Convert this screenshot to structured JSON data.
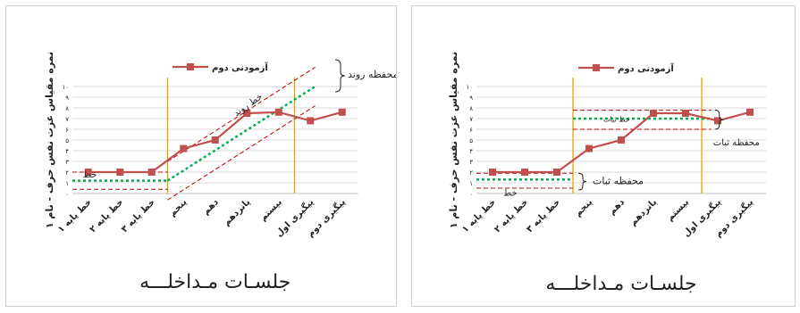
{
  "chart_data": [
    {
      "type": "line",
      "categories": [
        "خط پایه ۱",
        "خط پایه ۲",
        "خط پایه ۳",
        "پنجم",
        "دهم",
        "پانزدهم",
        "بیستم",
        "پیگیری اول",
        "پیگیری دوم"
      ],
      "series": [
        {
          "name": "آزمودنی دوم",
          "values": [
            2,
            2,
            2,
            4.2,
            5,
            7.5,
            7.6,
            6.8,
            7.6
          ]
        }
      ],
      "ylim": [
        0,
        10
      ],
      "yticks": [
        "۰",
        "۱",
        "۲",
        "۳",
        "۴",
        "۵",
        "۶",
        "۷",
        "۸",
        "۹",
        "۱۰"
      ],
      "xlabel": "جلسـات مـداخلـــه",
      "ylabel": "نمره مقیاس عزت نفس حرف - نام ۱",
      "legend": "top",
      "grid": true,
      "colors": {
        "series": "#c0504d",
        "band": "#c00000",
        "trend": "#00b050",
        "phase": "#f0a000"
      },
      "phase_lines_after": [
        3,
        7
      ],
      "baseline_trend_level": 1.2,
      "baseline_band": [
        0.4,
        2.0
      ],
      "trend_line": {
        "from": [
          3,
          1.2
        ],
        "to": [
          7,
          10
        ]
      },
      "trend_envelope_offset": 1.8,
      "annotations": [
        {
          "text": "محفظه روند",
          "style": "box"
        },
        {
          "text": "خط روند",
          "style": "slanted"
        },
        {
          "text": "خط",
          "style": "plain"
        }
      ]
    },
    {
      "type": "line",
      "categories": [
        "خط پایه ۱",
        "خط پایه ۲",
        "خط پایه ۳",
        "پنجم",
        "دهم",
        "پانزدهم",
        "بیستم",
        "پیگیری اول",
        "پیگیری دوم"
      ],
      "series": [
        {
          "name": "آزمودنی دوم",
          "values": [
            2,
            2,
            2,
            4.2,
            5,
            7.5,
            7.5,
            6.8,
            7.6
          ]
        }
      ],
      "ylim": [
        0,
        10
      ],
      "yticks": [
        "۰",
        "۱",
        "۲",
        "۳",
        "۴",
        "۵",
        "۶",
        "۷",
        "۸",
        "۹",
        "۱۰"
      ],
      "xlabel": "جلسـات مـداخلـــه",
      "ylabel": "نمره مقیاس عزت نفس حرف - نام ۱",
      "legend": "top",
      "grid": true,
      "colors": {
        "series": "#c0504d",
        "band": "#c00000",
        "trend": "#00b050",
        "phase": "#f0a000"
      },
      "phase_lines_after": [
        3,
        7
      ],
      "baseline_level": 1.3,
      "baseline_band": [
        0.5,
        1.9
      ],
      "treatment_level": 7.0,
      "treatment_band": [
        6.0,
        7.8
      ],
      "annotations": [
        {
          "text": "محفظه ثبات",
          "style": "brace-top"
        },
        {
          "text": "خط ثبات",
          "style": "plain"
        },
        {
          "text": "محفظه ثبات",
          "style": "brace-bottom"
        },
        {
          "text": "خط",
          "style": "plain"
        }
      ]
    }
  ]
}
